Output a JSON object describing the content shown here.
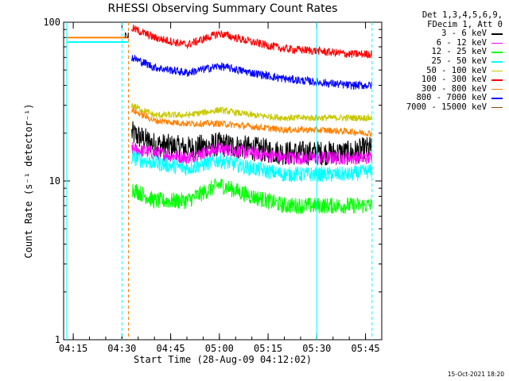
{
  "title": "RHESSI Observing Summary Count Rates",
  "footer_timestamp": "15-Oct-2021 18:20",
  "legend_header": [
    "Det 1,3,4,5,6,9,",
    "FDecim 1, Att 0"
  ],
  "flag_label": "N",
  "chart_data": {
    "type": "line",
    "title": "RHESSI Observing Summary Count Rates",
    "xlabel": "Start Time (28-Aug-09 04:12:02)",
    "ylabel": "Count Rate (s⁻¹ detector⁻¹)",
    "yscale": "log",
    "ylim": [
      1,
      100
    ],
    "xlim": [
      "04:12:02",
      "05:50:00"
    ],
    "x_ticks": [
      "04:15",
      "04:30",
      "04:45",
      "05:00",
      "05:15",
      "05:30",
      "05:45"
    ],
    "y_ticks": [
      "1",
      "10",
      "100"
    ],
    "grid": false,
    "legend_position": "right",
    "x": [
      "04:13",
      "04:20",
      "04:30",
      "04:33",
      "04:40",
      "04:50",
      "05:00",
      "05:10",
      "05:20",
      "05:30",
      "05:40",
      "05:46"
    ],
    "series": [
      {
        "name": "3 - 6 keV",
        "color": "#000000",
        "values": [
          null,
          null,
          null,
          20,
          17,
          16,
          17,
          16,
          15,
          15,
          15,
          16
        ]
      },
      {
        "name": "6 - 12 keV",
        "color": "#ff00ff",
        "values": [
          null,
          null,
          null,
          16,
          15,
          14,
          16,
          15,
          14,
          14,
          14,
          14
        ]
      },
      {
        "name": "12 - 25 keV",
        "color": "#00ff00",
        "values": [
          null,
          null,
          null,
          9,
          7.5,
          7.5,
          9.5,
          8,
          7,
          7,
          7,
          7
        ]
      },
      {
        "name": "25 - 50 keV",
        "color": "#00ffff",
        "values": [
          75,
          75,
          75,
          14,
          13,
          12,
          13.5,
          12,
          11,
          11,
          11,
          11.5
        ]
      },
      {
        "name": "50 - 100 keV",
        "color": "#c8c800",
        "values": [
          null,
          null,
          null,
          30,
          26,
          26,
          28,
          26,
          25,
          25,
          25,
          25
        ]
      },
      {
        "name": "100 - 300 keV",
        "color": "#ff0000",
        "values": [
          null,
          null,
          null,
          92,
          80,
          72,
          85,
          75,
          68,
          66,
          63,
          63
        ]
      },
      {
        "name": "300 - 800 keV",
        "color": "#ff8000",
        "values": [
          80,
          80,
          80,
          28,
          24,
          23,
          23,
          22,
          21,
          21,
          20.5,
          20
        ]
      },
      {
        "name": "800 - 7000 keV",
        "color": "#0000ff",
        "values": [
          null,
          null,
          null,
          60,
          52,
          48,
          53,
          48,
          44,
          42,
          40,
          40
        ]
      },
      {
        "name": "7000 - 15000 keV",
        "color": "#8b4500",
        "values": [
          null,
          null,
          null,
          null,
          null,
          null,
          null,
          null,
          null,
          null,
          null,
          null
        ]
      }
    ],
    "markers": [
      {
        "time": "04:13",
        "style": "solid",
        "color": "#00ffff"
      },
      {
        "time": "04:30",
        "style": "dashed",
        "color": "#00ffff"
      },
      {
        "time": "04:32",
        "style": "dashed",
        "color": "#ff8000"
      },
      {
        "time": "05:30",
        "style": "solid",
        "color": "#00ffff"
      },
      {
        "time": "05:47",
        "style": "dashed",
        "color": "#00ffff"
      }
    ]
  }
}
